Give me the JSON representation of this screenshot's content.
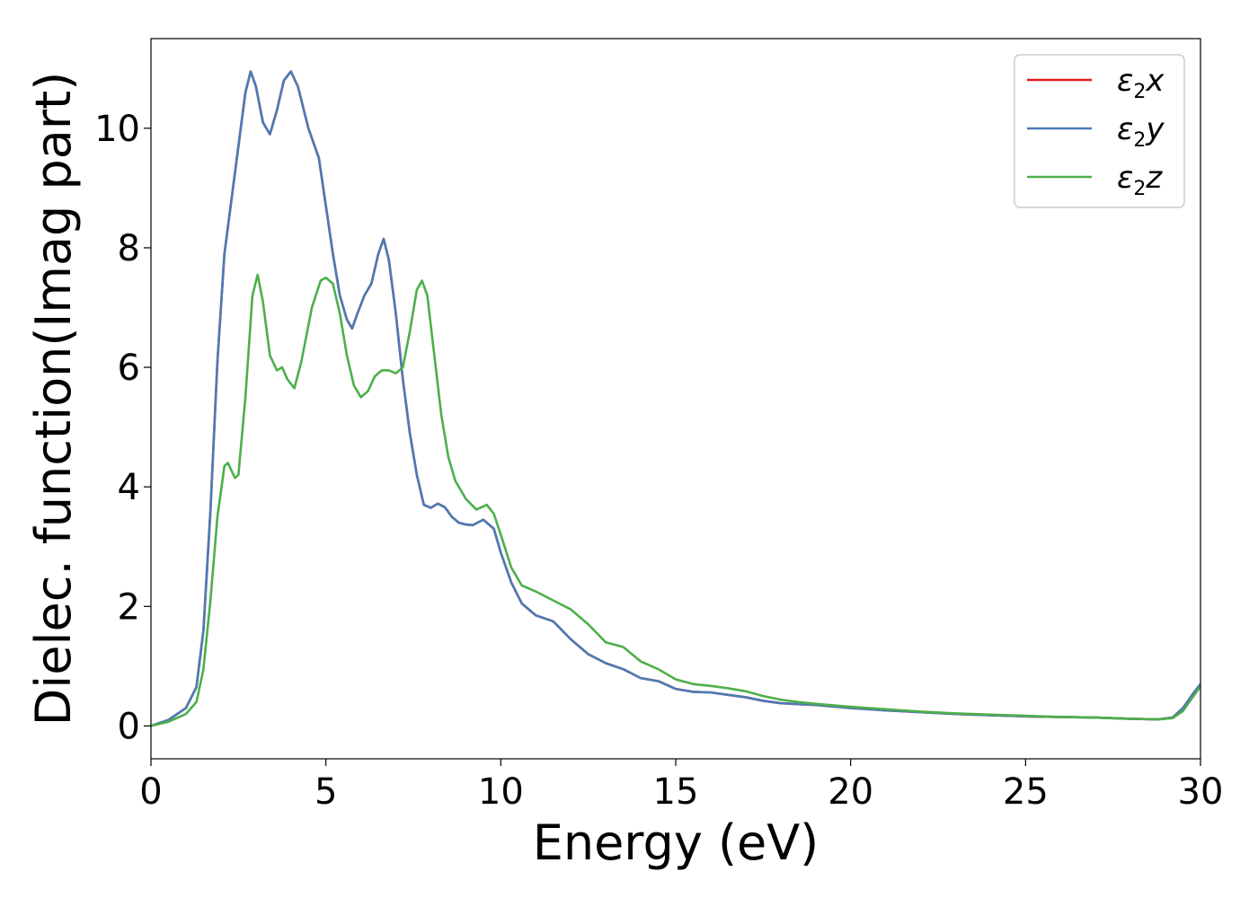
{
  "chart_data": {
    "type": "line",
    "xlabel": "Energy (eV)",
    "ylabel": "Dielec. function(Imag part)",
    "xlim": [
      0,
      30
    ],
    "ylim": [
      -0.55,
      11.5
    ],
    "x_ticks": [
      0,
      5,
      10,
      15,
      20,
      25,
      30
    ],
    "y_ticks": [
      0,
      2,
      4,
      6,
      8,
      10
    ],
    "grid": false,
    "legend_position": "top-right",
    "series": [
      {
        "name": "ε2x",
        "legend_base": "ε",
        "legend_sub": "2",
        "legend_suffix": "x",
        "color": "#e41a1c",
        "points": [
          [
            0,
            0
          ],
          [
            0.5,
            0.1
          ],
          [
            1.0,
            0.3
          ],
          [
            1.3,
            0.65
          ],
          [
            1.5,
            1.6
          ],
          [
            1.7,
            3.6
          ],
          [
            1.9,
            6.1
          ],
          [
            2.1,
            7.9
          ],
          [
            2.3,
            8.8
          ],
          [
            2.5,
            9.7
          ],
          [
            2.7,
            10.6
          ],
          [
            2.85,
            10.95
          ],
          [
            3.0,
            10.7
          ],
          [
            3.2,
            10.1
          ],
          [
            3.4,
            9.9
          ],
          [
            3.6,
            10.3
          ],
          [
            3.8,
            10.8
          ],
          [
            4.0,
            10.95
          ],
          [
            4.2,
            10.7
          ],
          [
            4.5,
            10.0
          ],
          [
            4.8,
            9.5
          ],
          [
            5.0,
            8.7
          ],
          [
            5.2,
            7.9
          ],
          [
            5.4,
            7.2
          ],
          [
            5.6,
            6.8
          ],
          [
            5.75,
            6.65
          ],
          [
            5.9,
            6.9
          ],
          [
            6.1,
            7.2
          ],
          [
            6.3,
            7.4
          ],
          [
            6.5,
            7.9
          ],
          [
            6.65,
            8.15
          ],
          [
            6.8,
            7.8
          ],
          [
            7.0,
            6.9
          ],
          [
            7.2,
            5.8
          ],
          [
            7.4,
            4.9
          ],
          [
            7.6,
            4.2
          ],
          [
            7.8,
            3.7
          ],
          [
            8.0,
            3.65
          ],
          [
            8.2,
            3.72
          ],
          [
            8.4,
            3.66
          ],
          [
            8.6,
            3.5
          ],
          [
            8.8,
            3.4
          ],
          [
            9.0,
            3.37
          ],
          [
            9.2,
            3.36
          ],
          [
            9.5,
            3.45
          ],
          [
            9.8,
            3.3
          ],
          [
            10.0,
            2.9
          ],
          [
            10.3,
            2.4
          ],
          [
            10.6,
            2.05
          ],
          [
            11.0,
            1.85
          ],
          [
            11.5,
            1.75
          ],
          [
            12.0,
            1.45
          ],
          [
            12.5,
            1.2
          ],
          [
            13.0,
            1.05
          ],
          [
            13.5,
            0.95
          ],
          [
            14.0,
            0.8
          ],
          [
            14.5,
            0.75
          ],
          [
            15.0,
            0.62
          ],
          [
            15.5,
            0.57
          ],
          [
            16.0,
            0.56
          ],
          [
            16.5,
            0.52
          ],
          [
            17.0,
            0.48
          ],
          [
            17.5,
            0.42
          ],
          [
            18.0,
            0.38
          ],
          [
            19.0,
            0.35
          ],
          [
            20.0,
            0.3
          ],
          [
            21.0,
            0.26
          ],
          [
            22.0,
            0.23
          ],
          [
            23.0,
            0.2
          ],
          [
            24.0,
            0.18
          ],
          [
            25.0,
            0.16
          ],
          [
            26.0,
            0.15
          ],
          [
            27.0,
            0.14
          ],
          [
            28.0,
            0.12
          ],
          [
            28.8,
            0.11
          ],
          [
            29.2,
            0.14
          ],
          [
            29.5,
            0.3
          ],
          [
            29.8,
            0.55
          ],
          [
            30.0,
            0.7
          ]
        ]
      },
      {
        "name": "ε2y",
        "legend_base": "ε",
        "legend_sub": "2",
        "legend_suffix": "y",
        "color": "#4a7bb5",
        "points": [
          [
            0,
            0
          ],
          [
            0.5,
            0.1
          ],
          [
            1.0,
            0.3
          ],
          [
            1.3,
            0.65
          ],
          [
            1.5,
            1.6
          ],
          [
            1.7,
            3.6
          ],
          [
            1.9,
            6.1
          ],
          [
            2.1,
            7.9
          ],
          [
            2.3,
            8.8
          ],
          [
            2.5,
            9.7
          ],
          [
            2.7,
            10.6
          ],
          [
            2.85,
            10.95
          ],
          [
            3.0,
            10.7
          ],
          [
            3.2,
            10.1
          ],
          [
            3.4,
            9.9
          ],
          [
            3.6,
            10.3
          ],
          [
            3.8,
            10.8
          ],
          [
            4.0,
            10.95
          ],
          [
            4.2,
            10.7
          ],
          [
            4.5,
            10.0
          ],
          [
            4.8,
            9.5
          ],
          [
            5.0,
            8.7
          ],
          [
            5.2,
            7.9
          ],
          [
            5.4,
            7.2
          ],
          [
            5.6,
            6.8
          ],
          [
            5.75,
            6.65
          ],
          [
            5.9,
            6.9
          ],
          [
            6.1,
            7.2
          ],
          [
            6.3,
            7.4
          ],
          [
            6.5,
            7.9
          ],
          [
            6.65,
            8.15
          ],
          [
            6.8,
            7.8
          ],
          [
            7.0,
            6.9
          ],
          [
            7.2,
            5.8
          ],
          [
            7.4,
            4.9
          ],
          [
            7.6,
            4.2
          ],
          [
            7.8,
            3.7
          ],
          [
            8.0,
            3.65
          ],
          [
            8.2,
            3.72
          ],
          [
            8.4,
            3.66
          ],
          [
            8.6,
            3.5
          ],
          [
            8.8,
            3.4
          ],
          [
            9.0,
            3.37
          ],
          [
            9.2,
            3.36
          ],
          [
            9.5,
            3.45
          ],
          [
            9.8,
            3.3
          ],
          [
            10.0,
            2.9
          ],
          [
            10.3,
            2.4
          ],
          [
            10.6,
            2.05
          ],
          [
            11.0,
            1.85
          ],
          [
            11.5,
            1.75
          ],
          [
            12.0,
            1.45
          ],
          [
            12.5,
            1.2
          ],
          [
            13.0,
            1.05
          ],
          [
            13.5,
            0.95
          ],
          [
            14.0,
            0.8
          ],
          [
            14.5,
            0.75
          ],
          [
            15.0,
            0.62
          ],
          [
            15.5,
            0.57
          ],
          [
            16.0,
            0.56
          ],
          [
            16.5,
            0.52
          ],
          [
            17.0,
            0.48
          ],
          [
            17.5,
            0.42
          ],
          [
            18.0,
            0.38
          ],
          [
            19.0,
            0.35
          ],
          [
            20.0,
            0.3
          ],
          [
            21.0,
            0.26
          ],
          [
            22.0,
            0.23
          ],
          [
            23.0,
            0.2
          ],
          [
            24.0,
            0.18
          ],
          [
            25.0,
            0.16
          ],
          [
            26.0,
            0.15
          ],
          [
            27.0,
            0.14
          ],
          [
            28.0,
            0.12
          ],
          [
            28.8,
            0.11
          ],
          [
            29.2,
            0.14
          ],
          [
            29.5,
            0.3
          ],
          [
            29.8,
            0.55
          ],
          [
            30.0,
            0.7
          ]
        ]
      },
      {
        "name": "ε2z",
        "legend_base": "ε",
        "legend_sub": "2",
        "legend_suffix": "z",
        "color": "#4daf4a",
        "points": [
          [
            0,
            0
          ],
          [
            0.5,
            0.07
          ],
          [
            1.0,
            0.2
          ],
          [
            1.3,
            0.4
          ],
          [
            1.5,
            0.95
          ],
          [
            1.7,
            2.1
          ],
          [
            1.9,
            3.5
          ],
          [
            2.1,
            4.35
          ],
          [
            2.2,
            4.4
          ],
          [
            2.4,
            4.15
          ],
          [
            2.5,
            4.2
          ],
          [
            2.7,
            5.5
          ],
          [
            2.9,
            7.2
          ],
          [
            3.05,
            7.55
          ],
          [
            3.2,
            7.1
          ],
          [
            3.4,
            6.2
          ],
          [
            3.6,
            5.95
          ],
          [
            3.75,
            6.0
          ],
          [
            3.9,
            5.8
          ],
          [
            4.1,
            5.65
          ],
          [
            4.3,
            6.1
          ],
          [
            4.6,
            7.0
          ],
          [
            4.85,
            7.45
          ],
          [
            5.0,
            7.5
          ],
          [
            5.2,
            7.4
          ],
          [
            5.4,
            6.9
          ],
          [
            5.6,
            6.2
          ],
          [
            5.8,
            5.7
          ],
          [
            6.0,
            5.5
          ],
          [
            6.2,
            5.6
          ],
          [
            6.4,
            5.85
          ],
          [
            6.6,
            5.95
          ],
          [
            6.8,
            5.95
          ],
          [
            7.0,
            5.9
          ],
          [
            7.2,
            6.0
          ],
          [
            7.4,
            6.6
          ],
          [
            7.6,
            7.3
          ],
          [
            7.75,
            7.45
          ],
          [
            7.9,
            7.2
          ],
          [
            8.1,
            6.2
          ],
          [
            8.3,
            5.2
          ],
          [
            8.5,
            4.5
          ],
          [
            8.7,
            4.1
          ],
          [
            9.0,
            3.8
          ],
          [
            9.3,
            3.62
          ],
          [
            9.6,
            3.7
          ],
          [
            9.8,
            3.55
          ],
          [
            10.0,
            3.2
          ],
          [
            10.3,
            2.65
          ],
          [
            10.6,
            2.35
          ],
          [
            11.0,
            2.25
          ],
          [
            11.5,
            2.1
          ],
          [
            12.0,
            1.95
          ],
          [
            12.5,
            1.7
          ],
          [
            13.0,
            1.4
          ],
          [
            13.5,
            1.32
          ],
          [
            14.0,
            1.08
          ],
          [
            14.5,
            0.95
          ],
          [
            15.0,
            0.78
          ],
          [
            15.5,
            0.7
          ],
          [
            16.0,
            0.67
          ],
          [
            16.5,
            0.63
          ],
          [
            17.0,
            0.58
          ],
          [
            17.5,
            0.5
          ],
          [
            18.0,
            0.44
          ],
          [
            18.5,
            0.4
          ],
          [
            19.0,
            0.37
          ],
          [
            20.0,
            0.32
          ],
          [
            21.0,
            0.28
          ],
          [
            22.0,
            0.24
          ],
          [
            23.0,
            0.21
          ],
          [
            24.0,
            0.19
          ],
          [
            25.0,
            0.17
          ],
          [
            26.0,
            0.15
          ],
          [
            27.0,
            0.14
          ],
          [
            28.0,
            0.12
          ],
          [
            28.8,
            0.11
          ],
          [
            29.2,
            0.13
          ],
          [
            29.5,
            0.25
          ],
          [
            29.8,
            0.5
          ],
          [
            30.0,
            0.66
          ]
        ]
      }
    ]
  }
}
